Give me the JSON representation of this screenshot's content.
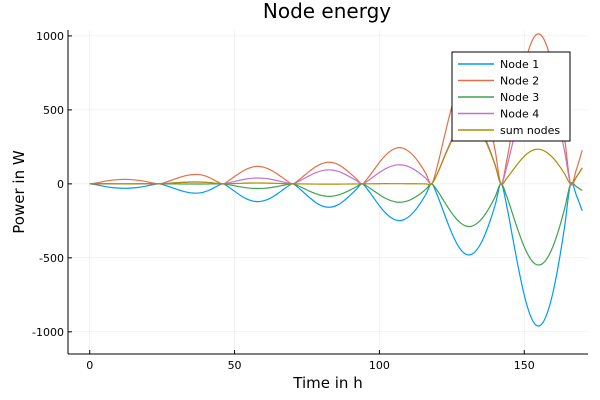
{
  "chart_data": {
    "type": "line",
    "title": "Node energy",
    "xlabel": "Time in h",
    "ylabel": "Power in W",
    "xlim": [
      -7.5,
      172
    ],
    "ylim": [
      -1150,
      1040
    ],
    "xticks": [
      0,
      50,
      100,
      150
    ],
    "yticks": [
      -1000,
      -500,
      0,
      500,
      1000
    ],
    "grid": true,
    "legend_position": "top-right",
    "x": [
      0,
      2,
      4,
      6,
      8,
      10,
      12,
      14,
      16,
      18,
      20,
      22,
      24,
      26,
      28,
      30,
      32,
      34,
      36,
      38,
      40,
      42,
      44,
      46,
      48,
      50,
      52,
      54,
      56,
      58,
      60,
      62,
      64,
      66,
      68,
      70,
      72,
      74,
      76,
      78,
      80,
      82,
      84,
      86,
      88,
      90,
      92,
      94,
      96,
      98,
      100,
      102,
      104,
      106,
      108,
      110,
      112,
      114,
      116,
      118,
      120,
      122,
      124,
      126,
      128,
      130,
      132,
      134,
      136,
      138,
      140,
      142,
      144,
      146,
      148,
      150,
      152,
      154,
      156,
      158,
      160,
      162,
      164,
      166,
      168,
      170
    ],
    "series": [
      {
        "name": "Node 1",
        "color": "#009AFA",
        "values": [
          0.0,
          -5.0,
          -13.0,
          -20.1,
          -25.5,
          -28.8,
          -30.0,
          -28.8,
          -25.5,
          -20.1,
          -13.0,
          -5.0,
          -0.0,
          -9.8,
          -23.2,
          -36.2,
          -48.5,
          -58.0,
          -62.6,
          -61.4,
          -52.1,
          -35.6,
          -15.2,
          -0.0,
          -22.0,
          -50.4,
          -77.6,
          -100.0,
          -114.8,
          -120.0,
          -114.8,
          -100.0,
          -77.6,
          -50.4,
          -22.0,
          -0.0,
          -25.8,
          -60.5,
          -94.9,
          -125.6,
          -147.4,
          -157.8,
          -154.7,
          -138.3,
          -110.4,
          -75.0,
          -37.6,
          -0.0,
          -40.2,
          -94.1,
          -147.6,
          -194.0,
          -228.5,
          -246.4,
          -245.0,
          -224.5,
          -187.0,
          -135.0,
          -71.8,
          -0.0,
          -77.6,
          -181.8,
          -285.1,
          -375.9,
          -442.5,
          -477.1,
          -474.4,
          -434.8,
          -363.0,
          -262.0,
          -139.5,
          -0.0,
          -155.0,
          -363.5,
          -570.3,
          -751.9,
          -885.0,
          -954.3,
          -948.9,
          -869.6,
          -726.0,
          -524.0,
          -279.0,
          -0.0,
          -77.6,
          -181.8
        ]
      },
      {
        "name": "Node 2",
        "color": "#E26F46",
        "values": [
          0.0,
          5.1,
          13.2,
          20.4,
          25.7,
          29.1,
          30.3,
          29.1,
          25.7,
          20.4,
          13.2,
          5.1,
          0.0,
          9.9,
          23.6,
          36.8,
          49.1,
          58.6,
          63.2,
          62.0,
          52.8,
          36.3,
          15.6,
          0.0,
          21.6,
          49.5,
          76.2,
          98.3,
          112.9,
          118.2,
          112.9,
          98.3,
          76.2,
          49.5,
          21.6,
          0.0,
          23.7,
          55.6,
          87.3,
          115.6,
          135.8,
          145.6,
          142.9,
          127.9,
          102.2,
          69.6,
          34.9,
          0.0,
          39.4,
          92.3,
          145.0,
          191.0,
          225.0,
          243.0,
          241.8,
          221.8,
          184.9,
          133.5,
          71.0,
          0.0,
          121.6,
          284.9,
          447.0,
          589.5,
          694.2,
          748.8,
          745.0,
          683.1,
          570.6,
          412.1,
          219.6,
          0.0,
          163.2,
          382.8,
          600.9,
          792.4,
          933.2,
          1006.6,
          1001.6,
          918.4,
          767.2,
          554.2,
          295.3,
          0.0,
          97.3,
          228.1
        ]
      },
      {
        "name": "Node 3",
        "color": "#3EA44E",
        "values": [
          0.0,
          -0.1,
          -0.2,
          -0.3,
          -0.4,
          -0.4,
          -0.4,
          -0.4,
          -0.4,
          -0.3,
          -0.2,
          -0.1,
          -0.0,
          -0.1,
          -0.4,
          -0.6,
          -0.8,
          -0.9,
          -1.0,
          -1.0,
          -0.8,
          -0.6,
          -0.3,
          -0.0,
          -5.6,
          -13.0,
          -20.1,
          -26.0,
          -29.9,
          -31.4,
          -30.0,
          -26.2,
          -20.4,
          -13.2,
          -5.8,
          -0.0,
          -13.6,
          -32.0,
          -50.3,
          -66.7,
          -78.4,
          -84.1,
          -82.6,
          -74.0,
          -59.2,
          -40.4,
          -20.3,
          -0.0,
          -19.8,
          -46.4,
          -73.1,
          -96.5,
          -114.0,
          -123.4,
          -123.1,
          -113.3,
          -94.7,
          -68.7,
          -36.7,
          -0.0,
          -45.8,
          -107.6,
          -169.2,
          -223.6,
          -264.0,
          -285.6,
          -285.0,
          -262.3,
          -219.6,
          -159.2,
          -85.0,
          -0.0,
          -87.2,
          -204.9,
          -322.3,
          -425.8,
          -502.8,
          -544.0,
          -542.8,
          -499.6,
          -418.4,
          -303.2,
          -162.0,
          -0.0,
          -19.2,
          -45.0
        ]
      },
      {
        "name": "Node 4",
        "color": "#C371D2",
        "values": [
          0.0,
          0.4,
          0.7,
          0.7,
          0.5,
          0.2,
          0.0,
          0.2,
          0.5,
          0.7,
          0.7,
          0.4,
          0.0,
          2.1,
          4.9,
          7.6,
          10.1,
          11.9,
          12.9,
          12.6,
          10.6,
          7.2,
          3.1,
          0.0,
          7.1,
          16.4,
          25.4,
          32.8,
          37.7,
          39.5,
          37.7,
          32.8,
          25.4,
          16.4,
          7.1,
          0.0,
          15.4,
          36.3,
          56.8,
          75.2,
          88.3,
          94.5,
          92.7,
          82.8,
          66.1,
          44.9,
          22.5,
          0.0,
          20.9,
          48.9,
          76.7,
          100.9,
          118.8,
          128.1,
          127.4,
          116.8,
          97.4,
          70.4,
          37.5,
          0.0,
          70.2,
          164.6,
          258.1,
          340.3,
          400.6,
          431.9,
          429.4,
          393.3,
          328.2,
          236.8,
          126.0,
          0.0,
          118.2,
          276.6,
          433.9,
          571.8,
          672.6,
          725.0,
          720.5,
          660.2,
          550.8,
          397.4,
          211.4,
          0.0,
          45.8,
          107.4
        ]
      },
      {
        "name": "sum nodes",
        "color": "#AD8E00",
        "values": [
          0.0,
          0.4,
          0.7,
          0.7,
          0.3,
          0.1,
          -0.1,
          0.1,
          0.3,
          0.7,
          0.7,
          0.4,
          0.0,
          2.1,
          4.9,
          7.6,
          9.9,
          11.6,
          12.5,
          12.2,
          10.5,
          7.3,
          3.2,
          0.0,
          1.1,
          2.5,
          3.9,
          5.1,
          5.9,
          6.3,
          5.8,
          4.9,
          3.6,
          2.3,
          0.9,
          0.0,
          -0.3,
          -0.6,
          -1.1,
          -1.5,
          -1.7,
          -1.8,
          -1.7,
          -1.6,
          -1.3,
          -0.9,
          -0.5,
          0.0,
          0.3,
          0.7,
          1.0,
          1.4,
          1.3,
          1.3,
          1.1,
          0.8,
          0.6,
          0.2,
          0.0,
          0.0,
          68.4,
          160.1,
          250.8,
          330.3,
          388.3,
          418.1,
          415.0,
          379.3,
          316.2,
          227.7,
          121.1,
          0.0,
          39.2,
          91.0,
          142.2,
          186.6,
          218.0,
          233.3,
          230.4,
          209.4,
          173.6,
          124.4,
          65.7,
          0.0,
          46.3,
          108.7
        ]
      }
    ]
  }
}
